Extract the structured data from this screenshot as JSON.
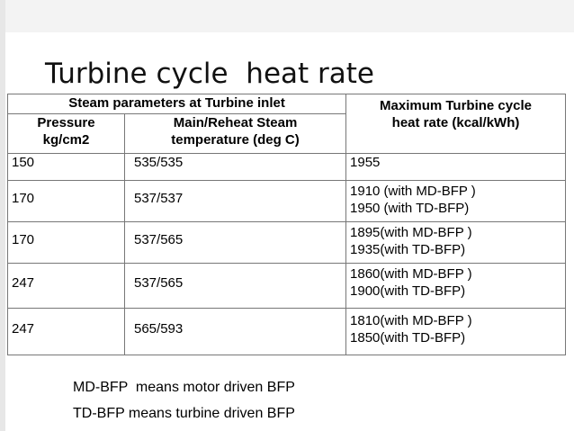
{
  "title": "Turbine cycle  heat rate",
  "table": {
    "group_header": "Steam parameters at Turbine inlet",
    "col_pressure": [
      "Pressure",
      "kg/cm2"
    ],
    "col_temperature": [
      "Main/Reheat Steam",
      "temperature (deg C)"
    ],
    "col_heat_rate": [
      "Maximum Turbine cycle",
      "heat rate (kcal/kWh)"
    ],
    "rows": [
      {
        "pressure": "150",
        "temperature": "535/535",
        "heat_rate": [
          "1955"
        ]
      },
      {
        "pressure": "170",
        "temperature": "537/537",
        "heat_rate": [
          "1910 (with MD-BFP )",
          "1950 (with TD-BFP)"
        ]
      },
      {
        "pressure": "170",
        "temperature": "537/565",
        "heat_rate": [
          "1895(with MD-BFP )",
          "1935(with TD-BFP)"
        ]
      },
      {
        "pressure": "247",
        "temperature": "537/565",
        "heat_rate": [
          "1860(with MD-BFP )",
          "1900(with TD-BFP)"
        ]
      },
      {
        "pressure": "247",
        "temperature": "565/593",
        "heat_rate": [
          "1810(with MD-BFP )",
          "1850(with TD-BFP)"
        ]
      }
    ]
  },
  "notes": [
    "MD-BFP  means motor driven BFP",
    "TD-BFP means turbine driven BFP"
  ]
}
